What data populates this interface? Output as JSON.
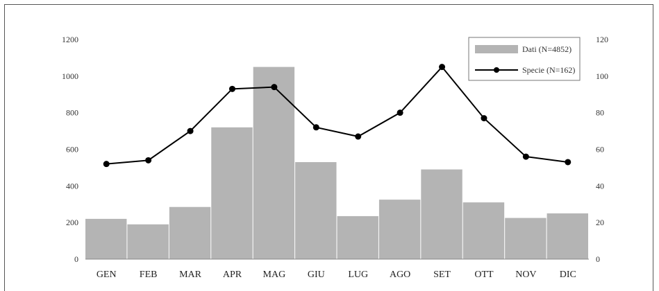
{
  "chart_data": {
    "type": "bar",
    "categories": [
      "GEN",
      "FEB",
      "MAR",
      "APR",
      "MAG",
      "GIU",
      "LUG",
      "AGO",
      "SET",
      "OTT",
      "NOV",
      "DIC"
    ],
    "series": [
      {
        "name": "Dati (N=4852)",
        "type": "bar",
        "axis": "left",
        "color": "#b4b4b4",
        "values": [
          220,
          190,
          285,
          720,
          1050,
          530,
          235,
          325,
          490,
          310,
          225,
          250
        ]
      },
      {
        "name": "Specie (N=162)",
        "type": "line",
        "axis": "right",
        "color": "#000000",
        "values": [
          52,
          54,
          70,
          93,
          94,
          72,
          67,
          80,
          105,
          77,
          56,
          53
        ]
      }
    ],
    "y_left": {
      "min": 0,
      "max": 1200,
      "ticks": [
        "0",
        "200",
        "400",
        "600",
        "800",
        "1000",
        "1200"
      ]
    },
    "y_right": {
      "min": 0,
      "max": 120,
      "ticks": [
        "0",
        "20",
        "40",
        "60",
        "80",
        "100",
        "120"
      ]
    },
    "legend": {
      "position": "top-right",
      "entries": [
        "Dati (N=4852)",
        "Specie (N=162)"
      ]
    },
    "grid": false
  }
}
